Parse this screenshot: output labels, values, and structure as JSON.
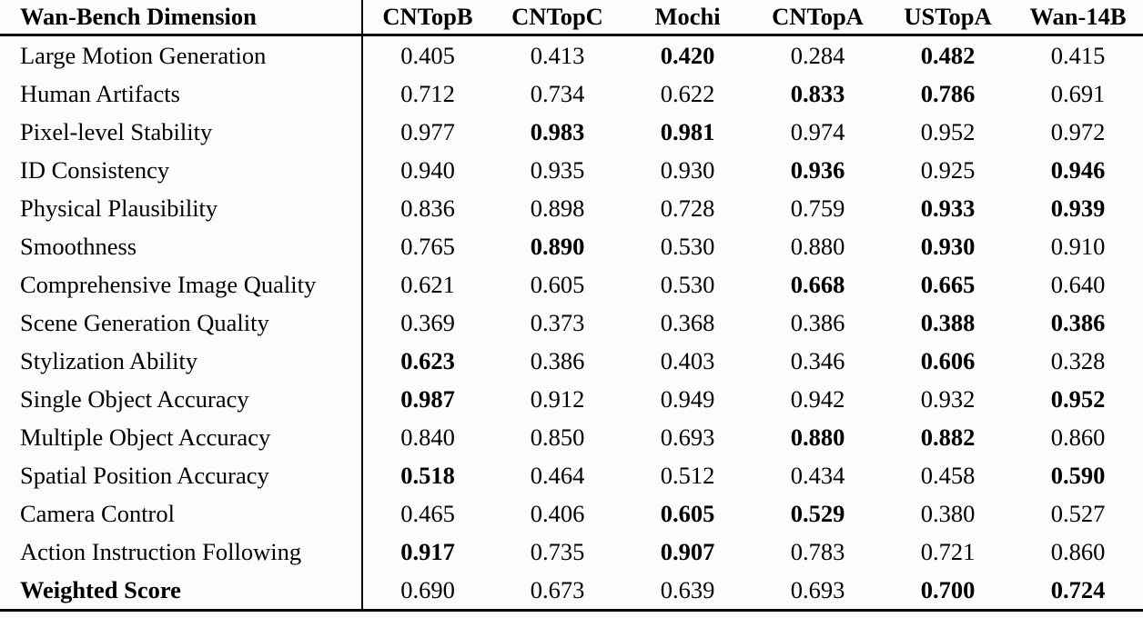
{
  "table": {
    "columns": [
      "Wan-Bench Dimension",
      "CNTopB",
      "CNTopC",
      "Mochi",
      "CNTopA",
      "USTopA",
      "Wan-14B"
    ],
    "rows": [
      {
        "dimension": "Large Motion Generation",
        "dimension_bold": false,
        "values": [
          "0.405",
          "0.413",
          "0.420",
          "0.284",
          "0.482",
          "0.415"
        ],
        "bold": [
          false,
          false,
          true,
          false,
          true,
          false
        ]
      },
      {
        "dimension": "Human Artifacts",
        "dimension_bold": false,
        "values": [
          "0.712",
          "0.734",
          "0.622",
          "0.833",
          "0.786",
          "0.691"
        ],
        "bold": [
          false,
          false,
          false,
          true,
          true,
          false
        ]
      },
      {
        "dimension": "Pixel-level Stability",
        "dimension_bold": false,
        "values": [
          "0.977",
          "0.983",
          "0.981",
          "0.974",
          "0.952",
          "0.972"
        ],
        "bold": [
          false,
          true,
          true,
          false,
          false,
          false
        ]
      },
      {
        "dimension": "ID Consistency",
        "dimension_bold": false,
        "values": [
          "0.940",
          "0.935",
          "0.930",
          "0.936",
          "0.925",
          "0.946"
        ],
        "bold": [
          false,
          false,
          false,
          true,
          false,
          true
        ]
      },
      {
        "dimension": "Physical Plausibility",
        "dimension_bold": false,
        "values": [
          "0.836",
          "0.898",
          "0.728",
          "0.759",
          "0.933",
          "0.939"
        ],
        "bold": [
          false,
          false,
          false,
          false,
          true,
          true
        ]
      },
      {
        "dimension": "Smoothness",
        "dimension_bold": false,
        "values": [
          "0.765",
          "0.890",
          "0.530",
          "0.880",
          "0.930",
          "0.910"
        ],
        "bold": [
          false,
          true,
          false,
          false,
          true,
          false
        ]
      },
      {
        "dimension": "Comprehensive Image Quality",
        "dimension_bold": false,
        "values": [
          "0.621",
          "0.605",
          "0.530",
          "0.668",
          "0.665",
          "0.640"
        ],
        "bold": [
          false,
          false,
          false,
          true,
          true,
          false
        ]
      },
      {
        "dimension": "Scene Generation Quality",
        "dimension_bold": false,
        "values": [
          "0.369",
          "0.373",
          "0.368",
          "0.386",
          "0.388",
          "0.386"
        ],
        "bold": [
          false,
          false,
          false,
          false,
          true,
          true
        ]
      },
      {
        "dimension": "Stylization Ability",
        "dimension_bold": false,
        "values": [
          "0.623",
          "0.386",
          "0.403",
          "0.346",
          "0.606",
          "0.328"
        ],
        "bold": [
          true,
          false,
          false,
          false,
          true,
          false
        ]
      },
      {
        "dimension": "Single Object Accuracy",
        "dimension_bold": false,
        "values": [
          "0.987",
          "0.912",
          "0.949",
          "0.942",
          "0.932",
          "0.952"
        ],
        "bold": [
          true,
          false,
          false,
          false,
          false,
          true
        ]
      },
      {
        "dimension": "Multiple Object Accuracy",
        "dimension_bold": false,
        "values": [
          "0.840",
          "0.850",
          "0.693",
          "0.880",
          "0.882",
          "0.860"
        ],
        "bold": [
          false,
          false,
          false,
          true,
          true,
          false
        ]
      },
      {
        "dimension": "Spatial Position Accuracy",
        "dimension_bold": false,
        "values": [
          "0.518",
          "0.464",
          "0.512",
          "0.434",
          "0.458",
          "0.590"
        ],
        "bold": [
          true,
          false,
          false,
          false,
          false,
          true
        ]
      },
      {
        "dimension": "Camera Control",
        "dimension_bold": false,
        "values": [
          "0.465",
          "0.406",
          "0.605",
          "0.529",
          "0.380",
          "0.527"
        ],
        "bold": [
          false,
          false,
          true,
          true,
          false,
          false
        ]
      },
      {
        "dimension": "Action Instruction Following",
        "dimension_bold": false,
        "values": [
          "0.917",
          "0.735",
          "0.907",
          "0.783",
          "0.721",
          "0.860"
        ],
        "bold": [
          true,
          false,
          true,
          false,
          false,
          false
        ]
      },
      {
        "dimension": "Weighted Score",
        "dimension_bold": true,
        "values": [
          "0.690",
          "0.673",
          "0.639",
          "0.693",
          "0.700",
          "0.724"
        ],
        "bold": [
          false,
          false,
          false,
          false,
          true,
          true
        ]
      }
    ],
    "style": {
      "text_color": "#000000",
      "rule_color": "#000000",
      "background_color": "#fcfcfc"
    }
  }
}
